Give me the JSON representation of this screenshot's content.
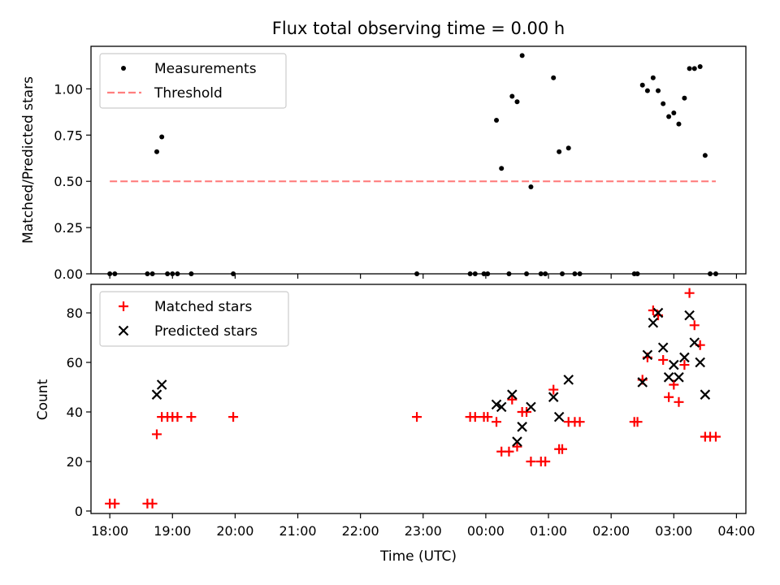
{
  "chart_data": [
    {
      "type": "scatter",
      "title": "Flux total observing time = 0.00 h",
      "xlabel": "",
      "ylabel": "Matched/Predicted stars",
      "xlim": [
        17.7,
        28.15
      ],
      "ylim": [
        0.0,
        1.23
      ],
      "yticks": [
        0.0,
        0.25,
        0.5,
        0.75,
        1.0
      ],
      "ytick_labels": [
        "0.00",
        "0.25",
        "0.50",
        "0.75",
        "1.00"
      ],
      "grid": false,
      "legend": {
        "position": "top-left",
        "entries": [
          "Measurements",
          "Threshold"
        ]
      },
      "threshold": {
        "value": 0.5,
        "x_start": 18.0,
        "x_end": 27.67,
        "color": "#ff7f7f"
      },
      "series": [
        {
          "name": "Measurements",
          "marker": "dot",
          "color": "#000000",
          "points": [
            [
              18.0,
              0.0
            ],
            [
              18.08,
              0.0
            ],
            [
              18.6,
              0.0
            ],
            [
              18.68,
              0.0
            ],
            [
              18.75,
              0.66
            ],
            [
              18.83,
              0.74
            ],
            [
              18.92,
              0.0
            ],
            [
              19.0,
              0.0
            ],
            [
              19.08,
              0.0
            ],
            [
              19.3,
              0.0
            ],
            [
              19.97,
              0.0
            ],
            [
              22.9,
              0.0
            ],
            [
              23.75,
              0.0
            ],
            [
              23.83,
              0.0
            ],
            [
              23.97,
              0.0
            ],
            [
              24.03,
              0.0
            ],
            [
              24.17,
              0.83
            ],
            [
              24.25,
              0.57
            ],
            [
              24.37,
              0.0
            ],
            [
              24.42,
              0.96
            ],
            [
              24.5,
              0.93
            ],
            [
              24.58,
              1.18
            ],
            [
              24.65,
              0.0
            ],
            [
              24.72,
              0.47
            ],
            [
              24.88,
              0.0
            ],
            [
              24.95,
              0.0
            ],
            [
              25.08,
              1.06
            ],
            [
              25.17,
              0.66
            ],
            [
              25.22,
              0.0
            ],
            [
              25.32,
              0.68
            ],
            [
              25.42,
              0.0
            ],
            [
              25.5,
              0.0
            ],
            [
              26.37,
              0.0
            ],
            [
              26.42,
              0.0
            ],
            [
              26.5,
              1.02
            ],
            [
              26.58,
              0.99
            ],
            [
              26.67,
              1.06
            ],
            [
              26.75,
              0.99
            ],
            [
              26.83,
              0.92
            ],
            [
              26.92,
              0.85
            ],
            [
              27.0,
              0.87
            ],
            [
              27.08,
              0.81
            ],
            [
              27.17,
              0.95
            ],
            [
              27.25,
              1.11
            ],
            [
              27.33,
              1.11
            ],
            [
              27.42,
              1.12
            ],
            [
              27.5,
              0.64
            ],
            [
              27.58,
              0.0
            ],
            [
              27.67,
              0.0
            ]
          ]
        }
      ]
    },
    {
      "type": "scatter",
      "title": "",
      "xlabel": "Time (UTC)",
      "ylabel": "Count",
      "xlim": [
        17.7,
        28.15
      ],
      "ylim": [
        -1,
        91.5
      ],
      "yticks": [
        0,
        20,
        40,
        60,
        80
      ],
      "ytick_labels": [
        "0",
        "20",
        "40",
        "60",
        "80"
      ],
      "xticks": [
        18,
        19,
        20,
        21,
        22,
        23,
        24,
        25,
        26,
        27,
        28
      ],
      "xtick_labels": [
        "18:00",
        "19:00",
        "20:00",
        "21:00",
        "22:00",
        "23:00",
        "00:00",
        "01:00",
        "02:00",
        "03:00",
        "04:00"
      ],
      "grid": false,
      "legend": {
        "position": "top-left",
        "entries": [
          "Matched stars",
          "Predicted stars"
        ]
      },
      "series": [
        {
          "name": "Matched stars",
          "marker": "plus",
          "color": "#ff0000",
          "points": [
            [
              18.0,
              3
            ],
            [
              18.08,
              3
            ],
            [
              18.6,
              3
            ],
            [
              18.68,
              3
            ],
            [
              18.75,
              31
            ],
            [
              18.83,
              38
            ],
            [
              18.92,
              38
            ],
            [
              19.0,
              38
            ],
            [
              19.08,
              38
            ],
            [
              19.3,
              38
            ],
            [
              19.97,
              38
            ],
            [
              22.9,
              38
            ],
            [
              23.75,
              38
            ],
            [
              23.83,
              38
            ],
            [
              23.97,
              38
            ],
            [
              24.03,
              38
            ],
            [
              24.17,
              36
            ],
            [
              24.25,
              24
            ],
            [
              24.37,
              24
            ],
            [
              24.42,
              45
            ],
            [
              24.5,
              26
            ],
            [
              24.58,
              40
            ],
            [
              24.65,
              40
            ],
            [
              24.72,
              20
            ],
            [
              24.88,
              20
            ],
            [
              24.95,
              20
            ],
            [
              25.08,
              49
            ],
            [
              25.17,
              25
            ],
            [
              25.22,
              25
            ],
            [
              25.32,
              36
            ],
            [
              25.42,
              36
            ],
            [
              25.5,
              36
            ],
            [
              26.37,
              36
            ],
            [
              26.42,
              36
            ],
            [
              26.5,
              53
            ],
            [
              26.58,
              62
            ],
            [
              26.67,
              81
            ],
            [
              26.75,
              79
            ],
            [
              26.83,
              61
            ],
            [
              26.92,
              46
            ],
            [
              27.0,
              51
            ],
            [
              27.08,
              44
            ],
            [
              27.17,
              59
            ],
            [
              27.25,
              88
            ],
            [
              27.33,
              75
            ],
            [
              27.42,
              67
            ],
            [
              27.5,
              30
            ],
            [
              27.58,
              30
            ],
            [
              27.67,
              30
            ]
          ]
        },
        {
          "name": "Predicted stars",
          "marker": "x",
          "color": "#000000",
          "points": [
            [
              18.75,
              47
            ],
            [
              18.83,
              51
            ],
            [
              24.17,
              43
            ],
            [
              24.25,
              42
            ],
            [
              24.42,
              47
            ],
            [
              24.5,
              28
            ],
            [
              24.58,
              34
            ],
            [
              24.72,
              42
            ],
            [
              25.08,
              46
            ],
            [
              25.17,
              38
            ],
            [
              25.32,
              53
            ],
            [
              26.5,
              52
            ],
            [
              26.58,
              63
            ],
            [
              26.67,
              76
            ],
            [
              26.75,
              80
            ],
            [
              26.83,
              66
            ],
            [
              26.92,
              54
            ],
            [
              27.0,
              59
            ],
            [
              27.08,
              54
            ],
            [
              27.17,
              62
            ],
            [
              27.25,
              79
            ],
            [
              27.33,
              68
            ],
            [
              27.42,
              60
            ],
            [
              27.5,
              47
            ]
          ]
        }
      ]
    }
  ]
}
